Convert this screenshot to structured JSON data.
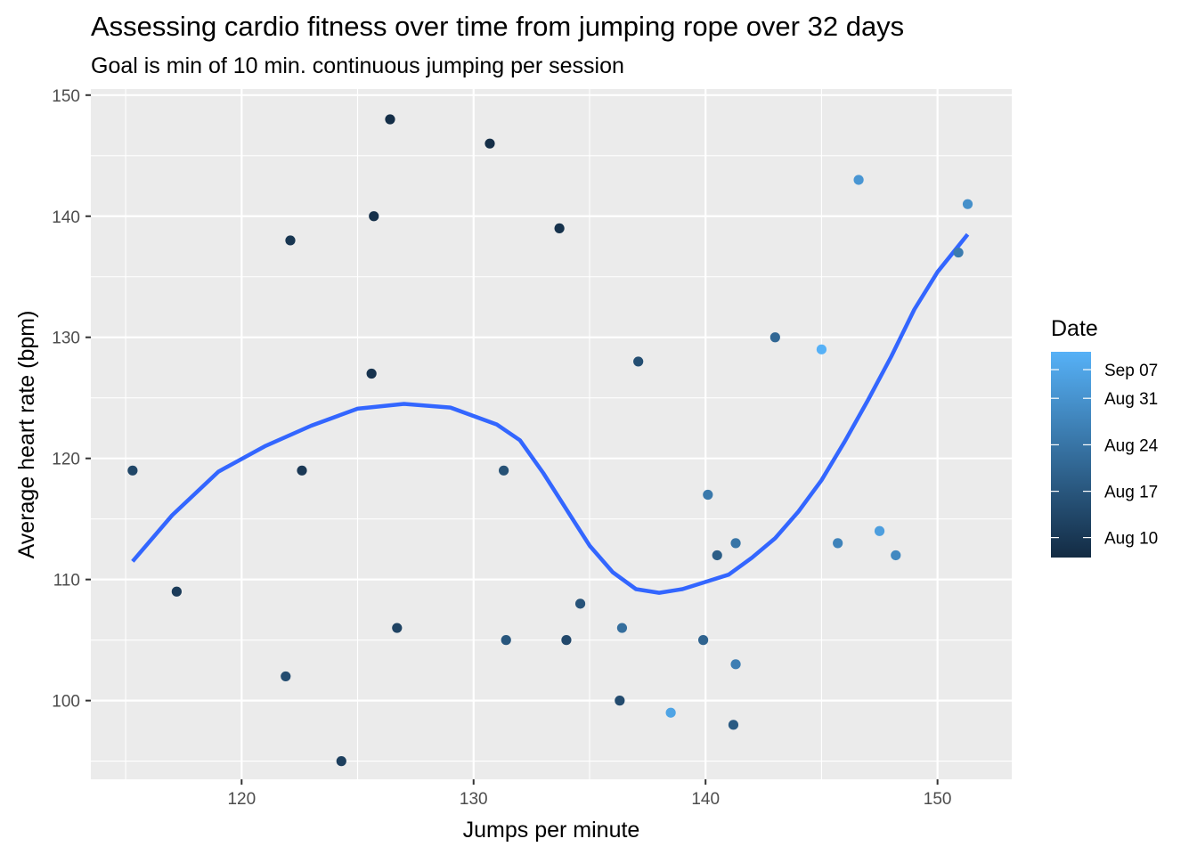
{
  "chart_data": {
    "type": "scatter",
    "title": "Assessing cardio fitness over time from jumping rope over 32 days",
    "subtitle": "Goal is min of 10 min. continuous jumping per session",
    "xlabel": "Jumps per minute",
    "ylabel": "Average heart rate (bpm)",
    "xlim": [
      113.5,
      153.2
    ],
    "ylim": [
      93.5,
      150.5
    ],
    "x_ticks": [
      120,
      130,
      140,
      150
    ],
    "y_ticks": [
      100,
      110,
      120,
      130,
      140,
      150
    ],
    "grid": true,
    "legend": {
      "title": "Date",
      "position": "right",
      "labels": [
        "Sep 07",
        "Aug 31",
        "Aug 24",
        "Aug 17",
        "Aug 10"
      ],
      "label_values": [
        1.0,
        0.774,
        0.548,
        0.322,
        0.097
      ],
      "color_low": "#132b43",
      "color_high": "#56b1f7"
    },
    "points": [
      {
        "x": 115.3,
        "y": 119,
        "date_frac": 0.2
      },
      {
        "x": 117.2,
        "y": 109,
        "date_frac": 0.12
      },
      {
        "x": 121.9,
        "y": 102,
        "date_frac": 0.25
      },
      {
        "x": 122.1,
        "y": 138,
        "date_frac": 0.08
      },
      {
        "x": 122.6,
        "y": 119,
        "date_frac": 0.1
      },
      {
        "x": 124.3,
        "y": 95,
        "date_frac": 0.15
      },
      {
        "x": 125.6,
        "y": 127,
        "date_frac": 0.06
      },
      {
        "x": 125.7,
        "y": 140,
        "date_frac": 0.04
      },
      {
        "x": 126.4,
        "y": 148,
        "date_frac": 0.02
      },
      {
        "x": 126.7,
        "y": 106,
        "date_frac": 0.18
      },
      {
        "x": 130.7,
        "y": 146,
        "date_frac": 0.03
      },
      {
        "x": 131.3,
        "y": 119,
        "date_frac": 0.28
      },
      {
        "x": 131.4,
        "y": 105,
        "date_frac": 0.32
      },
      {
        "x": 133.7,
        "y": 139,
        "date_frac": 0.05
      },
      {
        "x": 134.0,
        "y": 105,
        "date_frac": 0.22
      },
      {
        "x": 134.6,
        "y": 108,
        "date_frac": 0.3
      },
      {
        "x": 136.3,
        "y": 100,
        "date_frac": 0.24
      },
      {
        "x": 136.4,
        "y": 106,
        "date_frac": 0.5
      },
      {
        "x": 137.1,
        "y": 128,
        "date_frac": 0.26
      },
      {
        "x": 138.5,
        "y": 99,
        "date_frac": 0.9
      },
      {
        "x": 139.9,
        "y": 105,
        "date_frac": 0.42
      },
      {
        "x": 140.1,
        "y": 117,
        "date_frac": 0.58
      },
      {
        "x": 140.5,
        "y": 112,
        "date_frac": 0.38
      },
      {
        "x": 141.2,
        "y": 98,
        "date_frac": 0.35
      },
      {
        "x": 141.3,
        "y": 103,
        "date_frac": 0.62
      },
      {
        "x": 141.3,
        "y": 113,
        "date_frac": 0.55
      },
      {
        "x": 143.0,
        "y": 130,
        "date_frac": 0.45
      },
      {
        "x": 145.0,
        "y": 129,
        "date_frac": 1.0
      },
      {
        "x": 145.7,
        "y": 113,
        "date_frac": 0.66
      },
      {
        "x": 146.6,
        "y": 143,
        "date_frac": 0.8
      },
      {
        "x": 147.5,
        "y": 114,
        "date_frac": 0.86
      },
      {
        "x": 148.2,
        "y": 112,
        "date_frac": 0.7
      },
      {
        "x": 150.9,
        "y": 137,
        "date_frac": 0.6
      },
      {
        "x": 151.3,
        "y": 141,
        "date_frac": 0.75
      }
    ],
    "smooth_line": {
      "color": "#3366ff",
      "x": [
        115.3,
        117,
        119,
        121,
        123,
        125,
        127,
        129,
        131,
        132,
        133,
        134,
        135,
        136,
        137,
        138,
        139,
        140,
        141,
        142,
        143,
        144,
        145,
        146,
        147,
        148,
        149,
        150,
        151.3
      ],
      "y": [
        111.5,
        115.3,
        118.9,
        121.0,
        122.7,
        124.1,
        124.5,
        124.2,
        122.8,
        121.5,
        118.8,
        115.8,
        112.8,
        110.6,
        109.2,
        108.9,
        109.2,
        109.8,
        110.4,
        111.8,
        113.4,
        115.6,
        118.2,
        121.4,
        124.8,
        128.4,
        132.3,
        135.4,
        138.5
      ]
    }
  }
}
